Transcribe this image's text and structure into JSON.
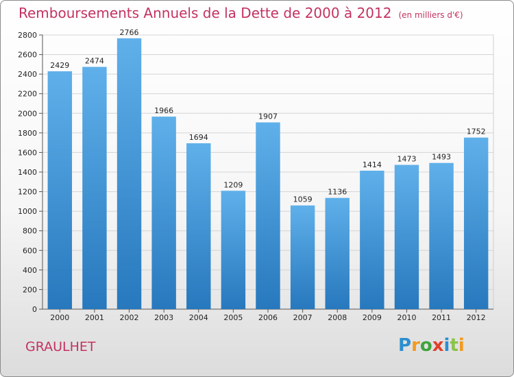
{
  "chart_data": {
    "type": "bar",
    "title": "Remboursements Annuels de la Dette de 2000 à 2012",
    "subtitle": "(en milliers d'€)",
    "categories": [
      "2000",
      "2001",
      "2002",
      "2003",
      "2004",
      "2005",
      "2006",
      "2007",
      "2008",
      "2009",
      "2010",
      "2011",
      "2012"
    ],
    "values": [
      2429,
      2474,
      2766,
      1966,
      1694,
      1209,
      1907,
      1059,
      1136,
      1414,
      1473,
      1493,
      1752
    ],
    "ylim": [
      0,
      2800
    ],
    "yticks": [
      0,
      200,
      400,
      600,
      800,
      1000,
      1200,
      1400,
      1600,
      1800,
      2000,
      2200,
      2400,
      2600,
      2800
    ],
    "grid": true,
    "bar_color": "#3a92d8"
  },
  "footer": {
    "city": "GRAULHET",
    "logo": "Proxiti"
  }
}
